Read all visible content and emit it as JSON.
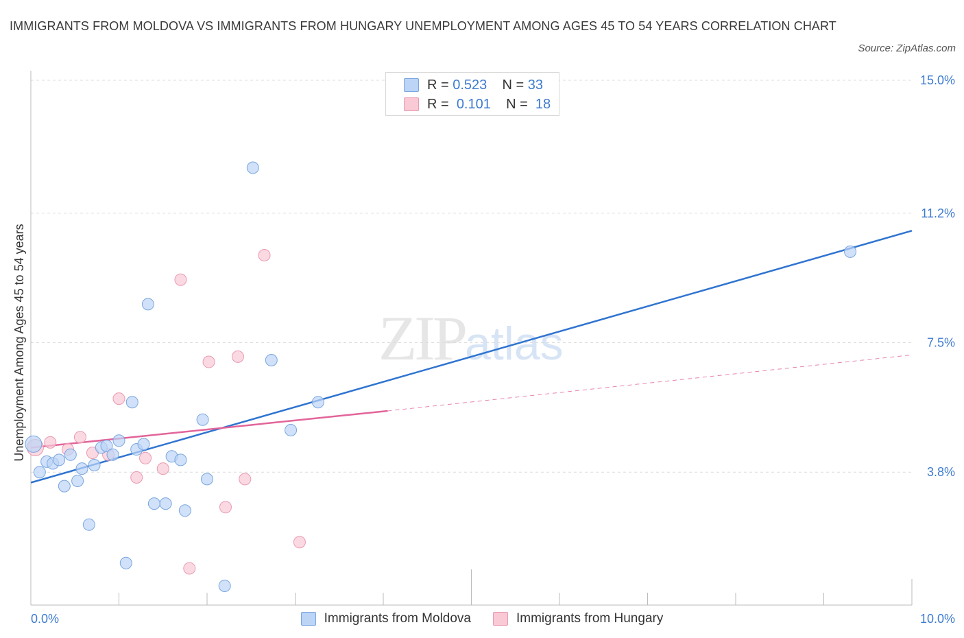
{
  "header": {
    "title": "IMMIGRANTS FROM MOLDOVA VS IMMIGRANTS FROM HUNGARY UNEMPLOYMENT AMONG AGES 45 TO 54 YEARS CORRELATION CHART",
    "source": "Source: ZipAtlas.com"
  },
  "watermark": {
    "zip": "ZIP",
    "atlas": "atlas"
  },
  "legend": {
    "moldova": {
      "r_label": "R =",
      "r_value": "0.523",
      "n_label": "N =",
      "n_value": "33"
    },
    "hungary": {
      "r_label": "R =",
      "r_value": "0.101",
      "n_label": "N =",
      "n_value": "18"
    }
  },
  "colors": {
    "moldova_fill": "#bcd4f6",
    "moldova_stroke": "#7aa6e0",
    "moldova_line": "#2f74d0",
    "hungary_fill": "#f9c9d6",
    "hungary_stroke": "#e99ab1",
    "hungary_line": "#e2649a",
    "axis_text": "#3d7bd1"
  },
  "chart_data": {
    "type": "scatter",
    "title": "IMMIGRANTS FROM MOLDOVA VS IMMIGRANTS FROM HUNGARY UNEMPLOYMENT AMONG AGES 45 TO 54 YEARS CORRELATION CHART",
    "xlabel": "",
    "ylabel": "Unemployment Among Ages 45 to 54 years",
    "xlim": [
      0,
      10
    ],
    "ylim": [
      0,
      15
    ],
    "x_tick_labels": [
      "0.0%",
      "10.0%"
    ],
    "y_ticks": [
      3.8,
      7.5,
      11.2,
      15.0
    ],
    "y_tick_labels": [
      "3.8%",
      "7.5%",
      "11.2%",
      "15.0%"
    ],
    "grid": true,
    "legend_position": "bottom",
    "series": [
      {
        "name": "Immigrants from Moldova",
        "r": 0.523,
        "n": 33,
        "trend": {
          "x": [
            0,
            10
          ],
          "y": [
            3.5,
            10.7
          ]
        },
        "points": [
          {
            "x": 0.03,
            "y": 4.6
          },
          {
            "x": 0.1,
            "y": 3.8
          },
          {
            "x": 0.18,
            "y": 4.1
          },
          {
            "x": 0.25,
            "y": 4.05
          },
          {
            "x": 0.32,
            "y": 4.15
          },
          {
            "x": 0.38,
            "y": 3.4
          },
          {
            "x": 0.45,
            "y": 4.3
          },
          {
            "x": 0.53,
            "y": 3.55
          },
          {
            "x": 0.58,
            "y": 3.9
          },
          {
            "x": 0.66,
            "y": 2.3
          },
          {
            "x": 0.72,
            "y": 4.0
          },
          {
            "x": 0.8,
            "y": 4.5
          },
          {
            "x": 0.86,
            "y": 4.55
          },
          {
            "x": 0.93,
            "y": 4.3
          },
          {
            "x": 1.0,
            "y": 4.7
          },
          {
            "x": 1.08,
            "y": 1.2
          },
          {
            "x": 1.15,
            "y": 5.8
          },
          {
            "x": 1.2,
            "y": 4.45
          },
          {
            "x": 1.28,
            "y": 4.6
          },
          {
            "x": 1.33,
            "y": 8.6
          },
          {
            "x": 1.4,
            "y": 2.9
          },
          {
            "x": 1.53,
            "y": 2.9
          },
          {
            "x": 1.6,
            "y": 4.25
          },
          {
            "x": 1.7,
            "y": 4.15
          },
          {
            "x": 1.75,
            "y": 2.7
          },
          {
            "x": 1.95,
            "y": 5.3
          },
          {
            "x": 2.0,
            "y": 3.6
          },
          {
            "x": 2.2,
            "y": 0.55
          },
          {
            "x": 2.52,
            "y": 12.5
          },
          {
            "x": 2.73,
            "y": 7.0
          },
          {
            "x": 2.95,
            "y": 5.0
          },
          {
            "x": 3.26,
            "y": 5.8
          },
          {
            "x": 9.3,
            "y": 10.1
          }
        ]
      },
      {
        "name": "Immigrants from Hungary",
        "r": 0.101,
        "n": 18,
        "trend": {
          "x": [
            0,
            4.05
          ],
          "y": [
            4.5,
            5.55
          ]
        },
        "trend_dashed": {
          "x": [
            4.05,
            10
          ],
          "y": [
            5.55,
            7.15
          ]
        },
        "points": [
          {
            "x": 0.05,
            "y": 4.5
          },
          {
            "x": 0.22,
            "y": 4.65
          },
          {
            "x": 0.42,
            "y": 4.45
          },
          {
            "x": 0.56,
            "y": 4.8
          },
          {
            "x": 0.7,
            "y": 4.35
          },
          {
            "x": 0.88,
            "y": 4.3
          },
          {
            "x": 1.0,
            "y": 5.9
          },
          {
            "x": 1.2,
            "y": 3.65
          },
          {
            "x": 1.3,
            "y": 4.2
          },
          {
            "x": 1.5,
            "y": 3.9
          },
          {
            "x": 1.7,
            "y": 9.3
          },
          {
            "x": 1.8,
            "y": 1.05
          },
          {
            "x": 2.02,
            "y": 6.95
          },
          {
            "x": 2.21,
            "y": 2.8
          },
          {
            "x": 2.35,
            "y": 7.1
          },
          {
            "x": 2.43,
            "y": 3.6
          },
          {
            "x": 2.65,
            "y": 10.0
          },
          {
            "x": 3.05,
            "y": 1.8
          }
        ]
      }
    ]
  }
}
